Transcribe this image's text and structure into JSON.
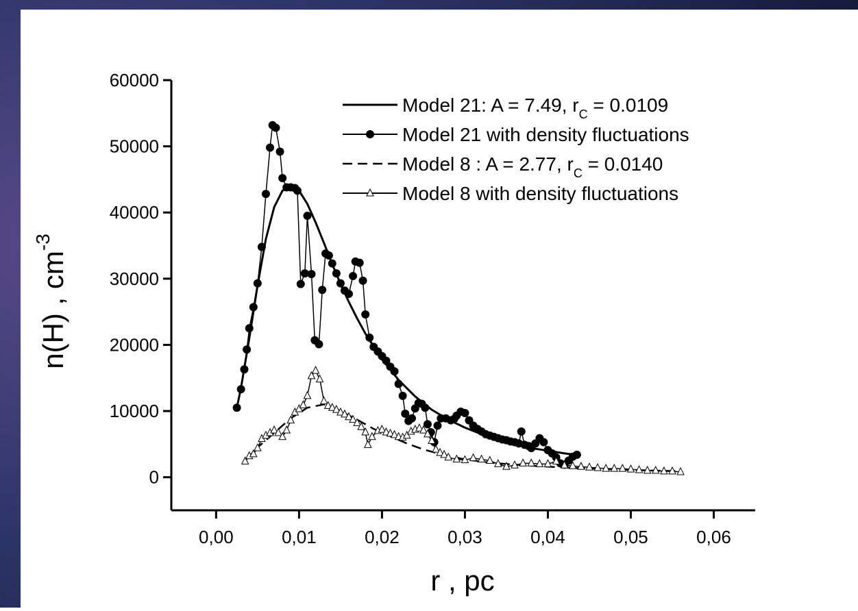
{
  "chart_data": {
    "type": "line",
    "xlabel": "r , pc",
    "ylabel": {
      "text": "n(H) , cm",
      "superscript": "-3"
    },
    "xlim": [
      -0.0054,
      0.065
    ],
    "ylim": [
      -5000,
      60000
    ],
    "xticks": [
      {
        "value": 0,
        "label": "0,00"
      },
      {
        "value": 0.01,
        "label": "0,01"
      },
      {
        "value": 0.02,
        "label": "0,02"
      },
      {
        "value": 0.03,
        "label": "0,03"
      },
      {
        "value": 0.04,
        "label": "0,04"
      },
      {
        "value": 0.05,
        "label": "0,05"
      },
      {
        "value": 0.06,
        "label": "0,06"
      }
    ],
    "yticks": [
      0,
      10000,
      20000,
      30000,
      40000,
      50000,
      60000
    ],
    "legend": "top-right",
    "series": [
      {
        "name": [
          "Model 21: A = 7.49, r",
          "C",
          " = 0.0109"
        ],
        "color": "#000000",
        "style": "solid",
        "marker": "none",
        "x": [
          0.0025,
          0.003,
          0.004,
          0.005,
          0.006,
          0.007,
          0.008,
          0.009,
          0.01,
          0.011,
          0.012,
          0.013,
          0.014,
          0.015,
          0.016,
          0.017,
          0.018,
          0.019,
          0.02,
          0.022,
          0.024,
          0.026,
          0.028,
          0.03,
          0.032,
          0.034,
          0.036,
          0.038,
          0.04,
          0.042,
          0.044
        ],
        "values": [
          10500,
          13500,
          21000,
          29000,
          36000,
          40800,
          43300,
          43900,
          43300,
          41300,
          38500,
          35400,
          32200,
          29200,
          26500,
          24000,
          21700,
          19700,
          17800,
          14700,
          12200,
          10200,
          8700,
          7500,
          6500,
          5700,
          5000,
          4400,
          4000,
          3600,
          3300
        ]
      },
      {
        "name": [
          "Model 21 with density fluctuations"
        ],
        "color": "#000000",
        "style": "thin",
        "marker": "circle",
        "x": [
          0.0025,
          0.003,
          0.0034,
          0.0037,
          0.004,
          0.0045,
          0.005,
          0.0055,
          0.006,
          0.0065,
          0.0068,
          0.0072,
          0.0077,
          0.008,
          0.0085,
          0.009,
          0.0095,
          0.0098,
          0.0102,
          0.0107,
          0.011,
          0.0115,
          0.0119,
          0.0124,
          0.0128,
          0.0132,
          0.0136,
          0.014,
          0.0145,
          0.015,
          0.0155,
          0.016,
          0.0165,
          0.0168,
          0.0173,
          0.0177,
          0.018,
          0.0185,
          0.019,
          0.0195,
          0.02,
          0.0205,
          0.021,
          0.0215,
          0.022,
          0.0225,
          0.0228,
          0.0232,
          0.0236,
          0.024,
          0.0244,
          0.0248,
          0.0252,
          0.0255,
          0.0259,
          0.0263,
          0.0267,
          0.0271,
          0.0277,
          0.0283,
          0.0287,
          0.029,
          0.0295,
          0.03,
          0.0305,
          0.031,
          0.0315,
          0.032,
          0.0325,
          0.033,
          0.0335,
          0.034,
          0.0345,
          0.035,
          0.0355,
          0.036,
          0.0365,
          0.0368,
          0.0372,
          0.0377,
          0.038,
          0.0385,
          0.039,
          0.0395,
          0.04,
          0.0405,
          0.041,
          0.0415,
          0.042,
          0.0425,
          0.043,
          0.0435
        ],
        "values": [
          10500,
          13300,
          16300,
          19300,
          22500,
          25700,
          29300,
          34800,
          42800,
          49800,
          53200,
          52800,
          49200,
          45200,
          43800,
          43800,
          43700,
          43300,
          29200,
          30800,
          39500,
          30700,
          20700,
          20100,
          28300,
          33800,
          33500,
          32300,
          30800,
          29300,
          28200,
          27700,
          30400,
          32600,
          32400,
          29700,
          24600,
          21100,
          19700,
          19000,
          18300,
          17600,
          16700,
          16000,
          14100,
          12300,
          9600,
          8500,
          8900,
          10400,
          11200,
          11100,
          10500,
          8000,
          6800,
          5300,
          7800,
          8900,
          8900,
          8600,
          8800,
          9300,
          9900,
          9700,
          8600,
          7800,
          7300,
          6900,
          6500,
          6300,
          6100,
          5900,
          5700,
          5600,
          5400,
          5300,
          5100,
          6900,
          4900,
          4700,
          4400,
          5100,
          5900,
          5300,
          4100,
          3600,
          3000,
          2100,
          1900,
          2500,
          3100,
          3400
        ]
      },
      {
        "name": [
          "Model 8 : A = 2.77, r",
          "C",
          " = 0.0140"
        ],
        "color": "#000000",
        "style": "dashed",
        "marker": "none",
        "x": [
          0.0035,
          0.005,
          0.007,
          0.009,
          0.011,
          0.013,
          0.015,
          0.017,
          0.019,
          0.021,
          0.023,
          0.025,
          0.027,
          0.03,
          0.033,
          0.036,
          0.04,
          0.045,
          0.05,
          0.056
        ],
        "values": [
          2500,
          4500,
          6700,
          8900,
          10500,
          11000,
          10000,
          8700,
          7300,
          6200,
          5100,
          4200,
          3500,
          2700,
          2200,
          1900,
          1600,
          1300,
          1100,
          900
        ]
      },
      {
        "name": [
          "Model 8 with density fluctuations"
        ],
        "color": "#000000",
        "style": "thin",
        "marker": "triangle",
        "x": [
          0.0035,
          0.004,
          0.0045,
          0.005,
          0.0055,
          0.006,
          0.0065,
          0.007,
          0.0075,
          0.008,
          0.0085,
          0.009,
          0.0095,
          0.01,
          0.0105,
          0.011,
          0.0115,
          0.012,
          0.0125,
          0.013,
          0.0135,
          0.014,
          0.0145,
          0.015,
          0.0155,
          0.016,
          0.0165,
          0.017,
          0.0175,
          0.018,
          0.0183,
          0.0188,
          0.0195,
          0.02,
          0.0205,
          0.021,
          0.0215,
          0.022,
          0.0225,
          0.023,
          0.0235,
          0.024,
          0.0245,
          0.025,
          0.0255,
          0.026,
          0.0265,
          0.027,
          0.0275,
          0.028,
          0.029,
          0.03,
          0.031,
          0.032,
          0.033,
          0.034,
          0.035,
          0.036,
          0.037,
          0.038,
          0.039,
          0.04,
          0.041,
          0.042,
          0.043,
          0.044,
          0.045,
          0.046,
          0.047,
          0.048,
          0.049,
          0.05,
          0.051,
          0.052,
          0.053,
          0.054,
          0.055,
          0.056
        ],
        "values": [
          2400,
          3200,
          3500,
          4400,
          5800,
          6300,
          6700,
          7100,
          6700,
          6100,
          7100,
          8600,
          9800,
          10300,
          10900,
          12300,
          15300,
          16100,
          14800,
          11500,
          10800,
          10500,
          10200,
          9800,
          9500,
          9100,
          8700,
          8200,
          7600,
          6800,
          4900,
          6100,
          7000,
          7200,
          6800,
          6600,
          6400,
          6100,
          6000,
          6300,
          6900,
          7200,
          7400,
          7100,
          6500,
          5500,
          4200,
          3700,
          3400,
          3000,
          2700,
          2600,
          2900,
          2700,
          2500,
          2000,
          1600,
          1800,
          2100,
          2100,
          2000,
          2000,
          2400,
          1800,
          1700,
          1600,
          1500,
          1400,
          1300,
          1300,
          1300,
          1200,
          1100,
          1000,
          1000,
          900,
          900,
          800
        ]
      }
    ]
  }
}
